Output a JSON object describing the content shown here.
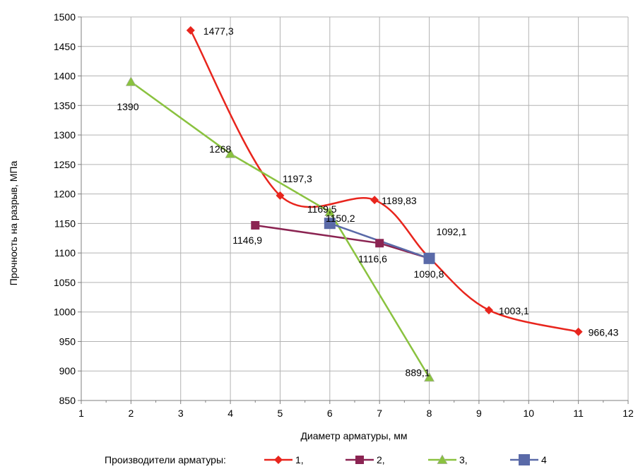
{
  "chart_data": {
    "type": "line",
    "xlabel": "Диаметр арматуры, мм",
    "ylabel": "Прочность на разрыв, МПа",
    "xlim": [
      1,
      12
    ],
    "ylim": [
      850,
      1500
    ],
    "x_ticks": [
      "1",
      "2",
      "3",
      "4",
      "5",
      "6",
      "7",
      "8",
      "9",
      "10",
      "11",
      "12"
    ],
    "y_ticks": [
      "850",
      "900",
      "950",
      "1000",
      "1050",
      "1100",
      "1150",
      "1200",
      "1250",
      "1300",
      "1350",
      "1400",
      "1450",
      "1500"
    ],
    "grid": true,
    "legend_title": "Производители арматуры:",
    "legend_position": "bottom",
    "series": [
      {
        "name": "1,",
        "color": "#e8251d",
        "marker": "diamond",
        "points": [
          {
            "x": 3.2,
            "y": 1477.3,
            "label": "1477,3"
          },
          {
            "x": 5,
            "y": 1197.3,
            "label": ""
          },
          {
            "x": 6.9,
            "y": 1189.83,
            "label": "1189,83"
          },
          {
            "x": 8,
            "y": 1092.1,
            "label": "1092,1"
          },
          {
            "x": 9.2,
            "y": 1003.1,
            "label": "1003,1"
          },
          {
            "x": 11,
            "y": 966.43,
            "label": "966,43"
          }
        ]
      },
      {
        "name": "2,",
        "color": "#8b2452",
        "marker": "square",
        "points": [
          {
            "x": 4.5,
            "y": 1146.9,
            "label": "1146,9"
          },
          {
            "x": 7,
            "y": 1116.6,
            "label": "1116,6"
          },
          {
            "x": 8,
            "y": 1090.8,
            "label": "1090,8"
          }
        ]
      },
      {
        "name": "3,",
        "color": "#8ac23f",
        "marker": "triangle",
        "points": [
          {
            "x": 2,
            "y": 1390,
            "label": "1390"
          },
          {
            "x": 4,
            "y": 1268,
            "label": "1268"
          },
          {
            "x": 6,
            "y": 1169.5,
            "label": "1169,5"
          },
          {
            "x": 8,
            "y": 889.1,
            "label": "889,1"
          }
        ]
      },
      {
        "name": "4",
        "color": "#5a6aa8",
        "marker": "square-large",
        "points": [
          {
            "x": 6,
            "y": 1150.2,
            "label": "1150,2"
          },
          {
            "x": 8,
            "y": 1090.8,
            "label": ""
          }
        ]
      }
    ],
    "annotations": [
      "1197,3"
    ]
  }
}
